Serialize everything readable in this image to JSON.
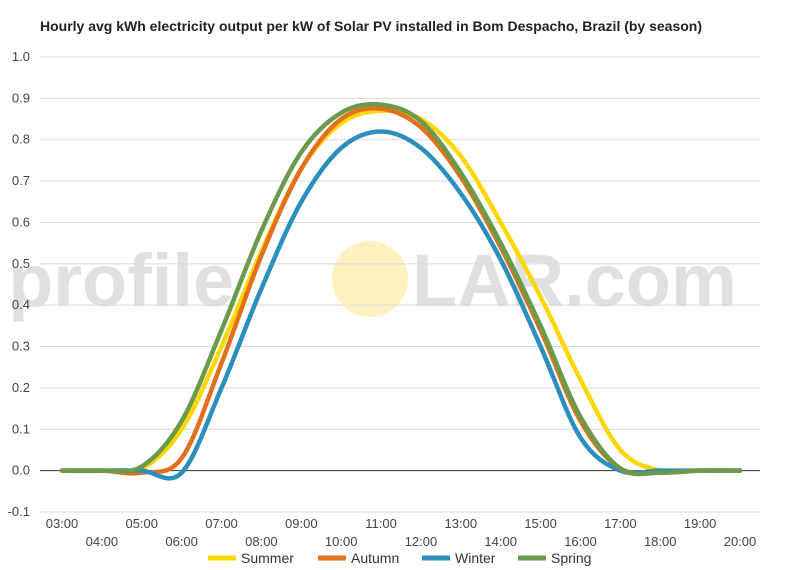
{
  "chart_data": {
    "type": "line",
    "title": "Hourly avg kWh electricity output per kW of Solar PV installed in Bom Despacho, Brazil (by season)",
    "watermark": {
      "left": "profile",
      "right": "LAR.com"
    },
    "x": [
      "03:00",
      "04:00",
      "05:00",
      "06:00",
      "07:00",
      "08:00",
      "09:00",
      "10:00",
      "11:00",
      "12:00",
      "13:00",
      "14:00",
      "15:00",
      "16:00",
      "17:00",
      "18:00",
      "19:00",
      "20:00"
    ],
    "ylim": [
      -0.1,
      1.0
    ],
    "yticks": [
      "1.0",
      "0.9",
      "0.8",
      "0.7",
      "0.6",
      "0.5",
      "0.4",
      "0.3",
      "0.2",
      "0.1",
      "0.0",
      "-0.1"
    ],
    "grid": true,
    "legend_position": "bottom",
    "series": [
      {
        "name": "Summer",
        "color": "#ffd700",
        "values": [
          0,
          0,
          0.005,
          0.1,
          0.3,
          0.53,
          0.73,
          0.84,
          0.87,
          0.85,
          0.76,
          0.6,
          0.42,
          0.22,
          0.05,
          0,
          0,
          0
        ]
      },
      {
        "name": "Autumn",
        "color": "#e2711d",
        "values": [
          0,
          0,
          -0.005,
          0.03,
          0.26,
          0.52,
          0.73,
          0.85,
          0.875,
          0.83,
          0.71,
          0.54,
          0.34,
          0.12,
          0.005,
          0,
          0,
          0
        ]
      },
      {
        "name": "Winter",
        "color": "#2a8fbd",
        "values": [
          0,
          0,
          0,
          -0.005,
          0.2,
          0.44,
          0.65,
          0.78,
          0.82,
          0.78,
          0.67,
          0.51,
          0.3,
          0.08,
          0,
          0,
          0,
          0
        ]
      },
      {
        "name": "Spring",
        "color": "#6a9a4a",
        "values": [
          0,
          0,
          0.01,
          0.12,
          0.34,
          0.58,
          0.77,
          0.865,
          0.885,
          0.845,
          0.72,
          0.55,
          0.35,
          0.13,
          0.005,
          -0.005,
          0,
          0
        ]
      }
    ]
  }
}
